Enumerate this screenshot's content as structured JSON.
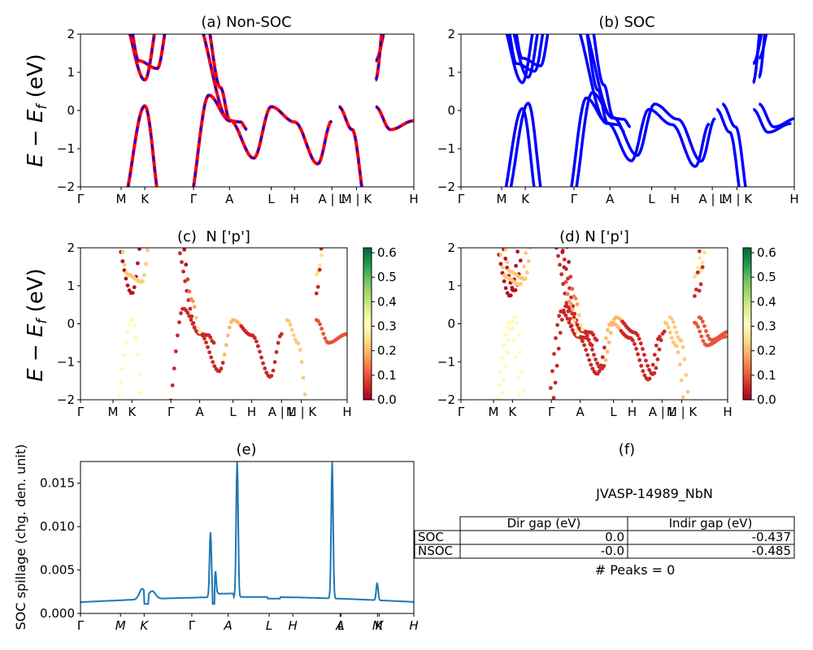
{
  "colors": {
    "red": "#ff0000",
    "blue": "#0000ff",
    "line": "#1f77b4",
    "cmap": [
      "#a50026",
      "#d73027",
      "#f46d43",
      "#fdae61",
      "#fee08b",
      "#ffffbf",
      "#d9ef8b",
      "#a6d96a",
      "#66bd63",
      "#1a9850",
      "#006837"
    ]
  },
  "kpath": [
    "Γ",
    "M",
    "K",
    "Γ",
    "A",
    "L",
    "H",
    "A | L",
    "M | K",
    "H"
  ],
  "kpath_c": [
    "Γ",
    "M",
    "K",
    "Γ",
    "A",
    "L",
    "H",
    "A | L",
    "M | K",
    "H"
  ],
  "kpath_e": [
    "Γ",
    "M",
    "K",
    "Γ",
    "A",
    "L",
    "H",
    "A",
    "L",
    "M",
    "K",
    "H"
  ],
  "chart_data": [
    {
      "id": "a",
      "type": "line",
      "title": "(a) Non-SOC",
      "ylabel": "E − E_f (eV)",
      "ylim": [
        -2,
        2
      ],
      "yticks": [
        "−2",
        "−1",
        "0",
        "1",
        "2"
      ],
      "series": [
        {
          "color": "red"
        },
        {
          "color": "blue",
          "style": "dashed"
        }
      ]
    },
    {
      "id": "b",
      "type": "line",
      "title": "(b) SOC",
      "ylim": [
        -2,
        2
      ],
      "yticks": [
        "−2",
        "−1",
        "0",
        "1",
        "2"
      ],
      "series": [
        {
          "color": "blue"
        }
      ]
    },
    {
      "id": "c",
      "type": "scatter",
      "title": "(c)  N ['p']",
      "ylabel": "E − E_f (eV)",
      "ylim": [
        -2,
        2
      ],
      "yticks": [
        "−2",
        "−1",
        "0",
        "1",
        "2"
      ],
      "colorbar": {
        "min": 0.0,
        "max": 0.62,
        "ticks": [
          "0.0",
          "0.1",
          "0.2",
          "0.3",
          "0.4",
          "0.5",
          "0.6"
        ]
      }
    },
    {
      "id": "d",
      "type": "scatter",
      "title": "(d) N ['p']",
      "ylim": [
        -2,
        2
      ],
      "yticks": [
        "−2",
        "−1",
        "0",
        "1",
        "2"
      ],
      "colorbar": {
        "min": 0.0,
        "max": 0.62,
        "ticks": [
          "0.0",
          "0.1",
          "0.2",
          "0.3",
          "0.4",
          "0.5",
          "0.6"
        ]
      }
    },
    {
      "id": "e",
      "type": "line",
      "title": "(e)",
      "ylabel": "SOC spillage (chg. den. unit)",
      "ylim": [
        0,
        0.0175
      ],
      "yticks": [
        "0.000",
        "0.005",
        "0.010",
        "0.015"
      ],
      "peaks": [
        {
          "x": 0.39,
          "y": 0.009
        },
        {
          "x": 0.405,
          "y": 0.0045
        },
        {
          "x": 0.47,
          "y": 0.0175
        },
        {
          "x": 0.755,
          "y": 0.0172
        },
        {
          "x": 0.89,
          "y": 0.0035
        }
      ]
    },
    {
      "id": "f",
      "type": "table",
      "title": "(f)",
      "subtitle": "JVASP-14989_NbN",
      "columns": [
        "",
        "Dir gap (eV)",
        "Indir gap (eV)"
      ],
      "rows": [
        [
          "SOC",
          "0.0",
          "-0.437"
        ],
        [
          "NSOC",
          "-0.0",
          "-0.485"
        ]
      ],
      "footer": "# Peaks = 0"
    }
  ]
}
